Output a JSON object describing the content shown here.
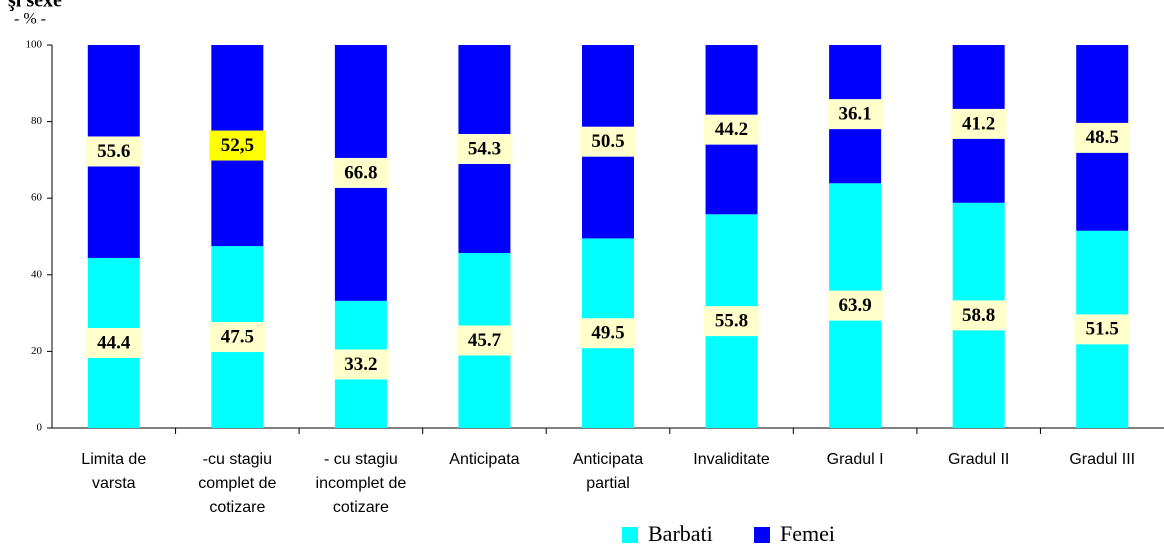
{
  "chart_data": {
    "type": "stacked_bar",
    "title": "şi sexe",
    "y_label": "- % -",
    "categories": [
      "Limita de varsta",
      "-cu stagiu complet de cotizare",
      "- cu stagiu incomplet de cotizare",
      "Anticipata",
      "Anticipata partial",
      "Invaliditate",
      "Gradul I",
      "Gradul II",
      "Gradul III"
    ],
    "series": [
      {
        "name": "Barbati",
        "color": "#00ffff",
        "values": [
          44.4,
          47.5,
          33.2,
          45.7,
          49.5,
          55.8,
          63.9,
          58.8,
          51.5
        ]
      },
      {
        "name": "Femei",
        "color": "#0000ff",
        "values": [
          55.6,
          52.5,
          66.8,
          54.3,
          50.5,
          44.2,
          36.1,
          41.2,
          48.5
        ],
        "value_labels": [
          "55.6",
          "52,5",
          "66.8",
          "54.3",
          "50.5",
          "44.2",
          "36.1",
          "41.2",
          "48.5"
        ]
      }
    ],
    "label_color": "#ffffcc",
    "label_highlight": {
      "series": 1,
      "index": 1,
      "color": "#ffff00"
    },
    "ylim": [
      0,
      100
    ],
    "yticks": [
      0,
      20,
      40,
      60,
      80,
      100
    ]
  }
}
